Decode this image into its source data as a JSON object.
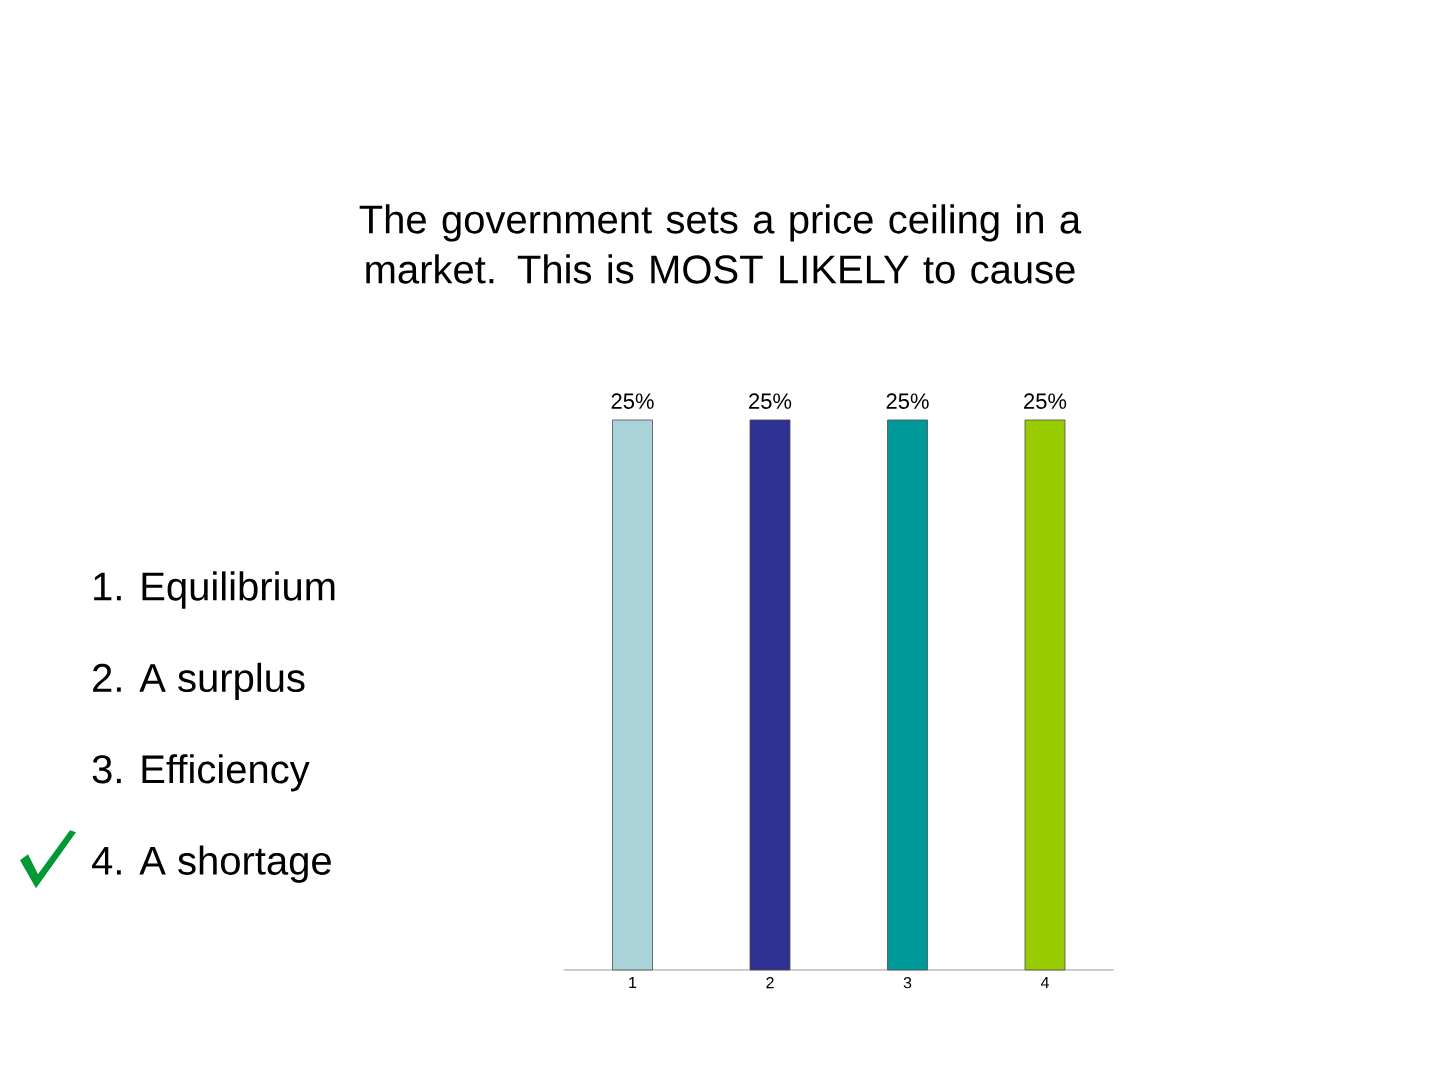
{
  "chart_data": {
    "type": "bar",
    "title": "The government sets a price ceiling in a market. This is MOST LIKELY to cause",
    "categories": [
      "1",
      "2",
      "3",
      "4"
    ],
    "values": [
      25,
      25,
      25,
      25
    ],
    "value_labels": [
      "25%",
      "25%",
      "25%",
      "25%"
    ],
    "colors": [
      "#a9d3d9",
      "#2e3192",
      "#009999",
      "#99cc00"
    ],
    "annotations": [
      "1.  Equilibrium",
      "2.  A surplus",
      "3.  Efficiency",
      "4.  A shortage"
    ]
  }
}
